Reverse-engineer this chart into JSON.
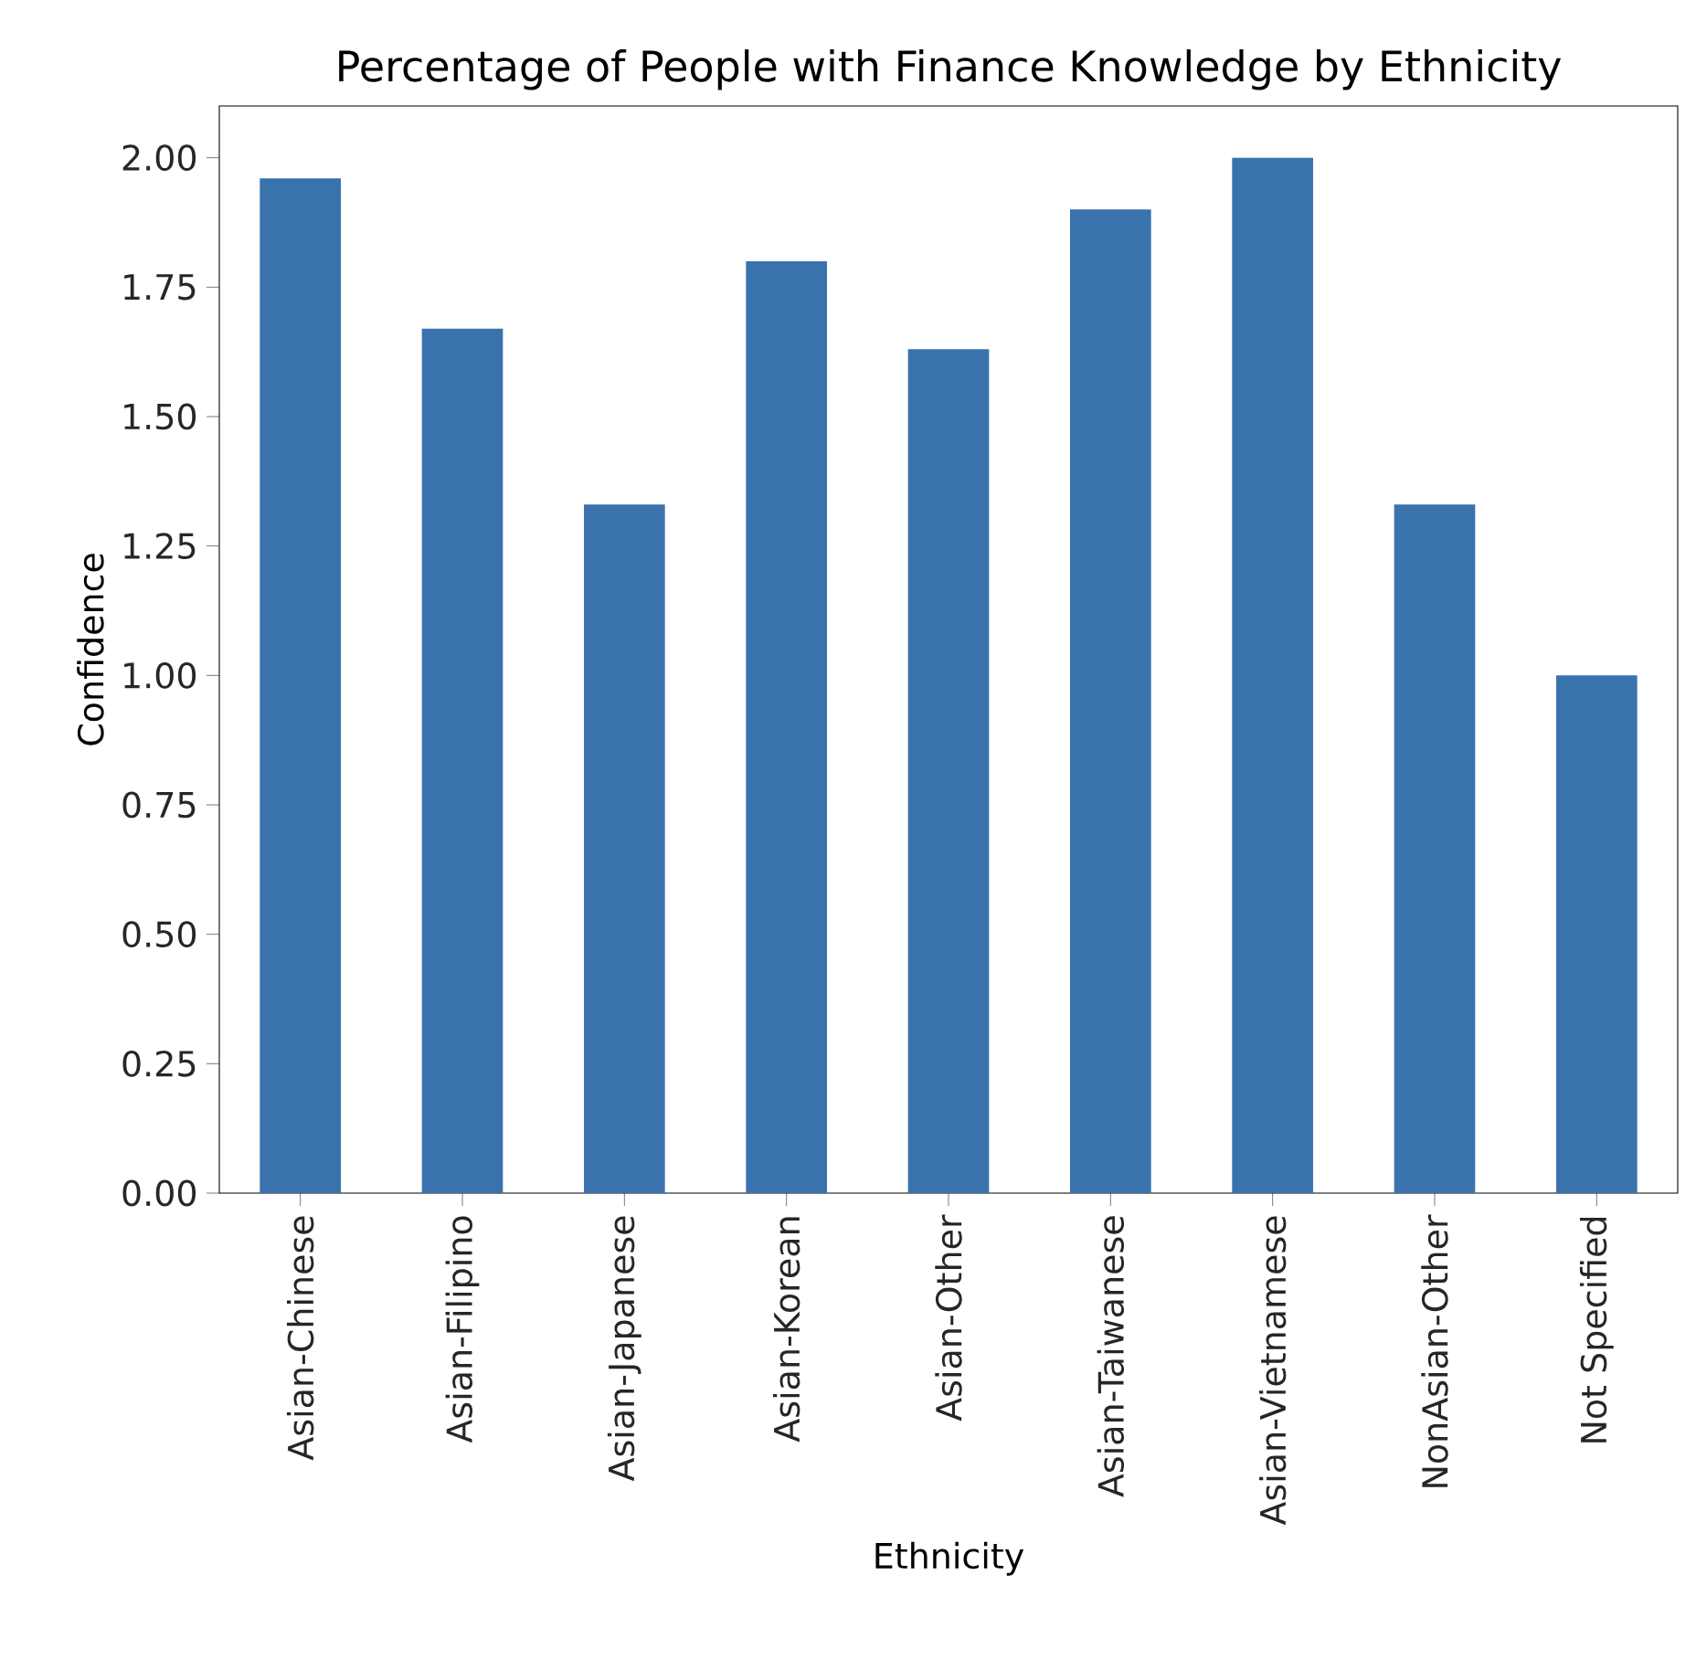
{
  "chart_data": {
    "type": "bar",
    "title": "Percentage of People with Finance Knowledge by Ethnicity",
    "xlabel": "Ethnicity",
    "ylabel": "Confidence",
    "categories": [
      "Asian-Chinese",
      "Asian-Filipino",
      "Asian-Japanese",
      "Asian-Korean",
      "Asian-Other",
      "Asian-Taiwanese",
      "Asian-Vietnamese",
      "NonAsian-Other",
      "Not Specified"
    ],
    "values": [
      1.96,
      1.67,
      1.33,
      1.8,
      1.63,
      1.9,
      2.0,
      1.33,
      1.0
    ],
    "color": "#3a72ae",
    "ylim": [
      0,
      2.1
    ],
    "yticks": [
      {
        "value": 0,
        "label": "0.00"
      },
      {
        "value": 0.25,
        "label": "0.25"
      },
      {
        "value": 0.5,
        "label": "0.50"
      },
      {
        "value": 0.75,
        "label": "0.75"
      },
      {
        "value": 1,
        "label": "1.00"
      },
      {
        "value": 1.25,
        "label": "1.25"
      },
      {
        "value": 1.5,
        "label": "1.50"
      },
      {
        "value": 1.75,
        "label": "1.75"
      },
      {
        "value": 2,
        "label": "2.00"
      }
    ]
  }
}
